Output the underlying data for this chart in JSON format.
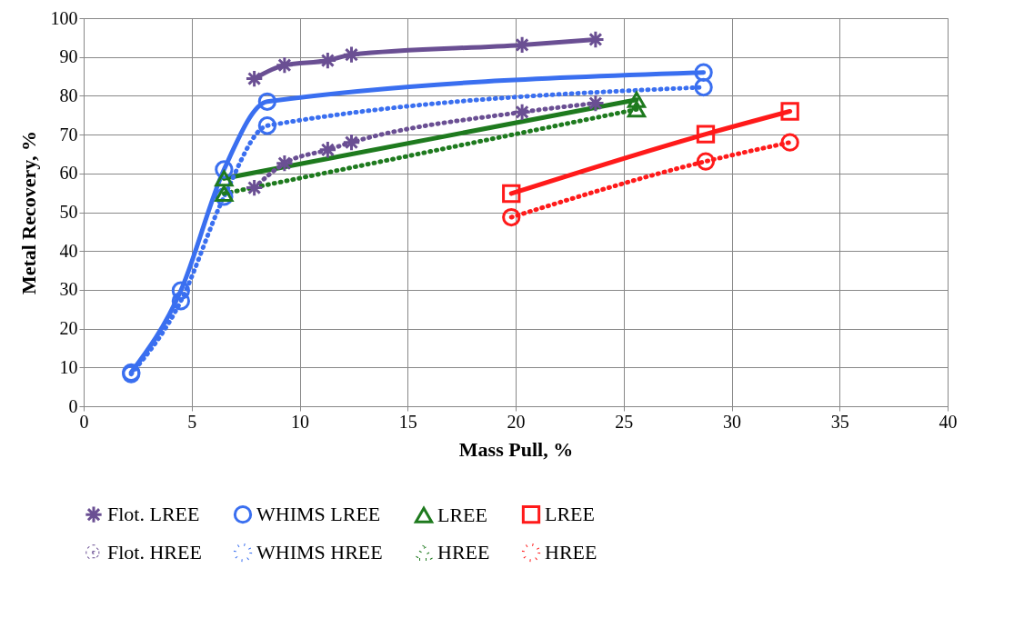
{
  "chart_data": {
    "type": "line",
    "xlabel": "Mass Pull, %",
    "ylabel": "Metal Recovery, %",
    "xlim": [
      0,
      40
    ],
    "xticks": [
      0,
      5,
      10,
      15,
      20,
      25,
      30,
      35,
      40
    ],
    "ylim": [
      0,
      100
    ],
    "yticks": [
      0,
      10,
      20,
      30,
      40,
      50,
      60,
      70,
      80,
      90,
      100
    ],
    "grid": true,
    "legend": "bottom",
    "series": [
      {
        "name": "Flot. LREE",
        "color": "#6a4f93",
        "marker": "cross",
        "line_style": "solid",
        "x": [
          7.9,
          9.3,
          11.3,
          12.4,
          20.3,
          23.7
        ],
        "values": [
          84.4,
          87.9,
          89.1,
          90.6,
          93.1,
          94.5
        ]
      },
      {
        "name": "WHIMS LREE",
        "color": "#3a6ff0",
        "marker": "circle",
        "line_style": "solid",
        "x": [
          2.2,
          4.5,
          6.5,
          8.5,
          28.7
        ],
        "values": [
          8.7,
          29.8,
          61.0,
          78.5,
          86.0
        ]
      },
      {
        "name": "LREE",
        "color": "#1e7a1e",
        "marker": "triangle",
        "line_style": "solid",
        "x": [
          6.5,
          25.6
        ],
        "values": [
          58.7,
          79.0
        ]
      },
      {
        "name": "LREE",
        "color": "#ff1a1a",
        "marker": "square",
        "line_style": "solid",
        "x": [
          19.8,
          28.8,
          32.7
        ],
        "values": [
          54.8,
          70.1,
          76.0
        ]
      },
      {
        "name": "Flot. HREE",
        "color": "#6a4f93",
        "marker": "cross",
        "line_style": "dotted",
        "x": [
          7.9,
          9.3,
          11.3,
          12.4,
          20.3,
          23.7
        ],
        "values": [
          56.3,
          62.6,
          66.1,
          68.0,
          75.8,
          78.1
        ]
      },
      {
        "name": "WHIMS HREE",
        "color": "#3a6ff0",
        "marker": "circle",
        "line_style": "dotted",
        "x": [
          2.2,
          4.5,
          6.5,
          8.5,
          28.7
        ],
        "values": [
          8.3,
          27.1,
          54.0,
          72.3,
          82.2
        ]
      },
      {
        "name": "HREE",
        "color": "#1e7a1e",
        "marker": "triangle",
        "line_style": "dotted",
        "x": [
          6.5,
          25.6
        ],
        "values": [
          54.8,
          76.5
        ]
      },
      {
        "name": "HREE",
        "color": "#ff1a1a",
        "marker": "circle",
        "line_style": "dotted",
        "x": [
          19.8,
          28.8,
          32.7
        ],
        "values": [
          48.7,
          63.1,
          68.0
        ]
      }
    ]
  }
}
